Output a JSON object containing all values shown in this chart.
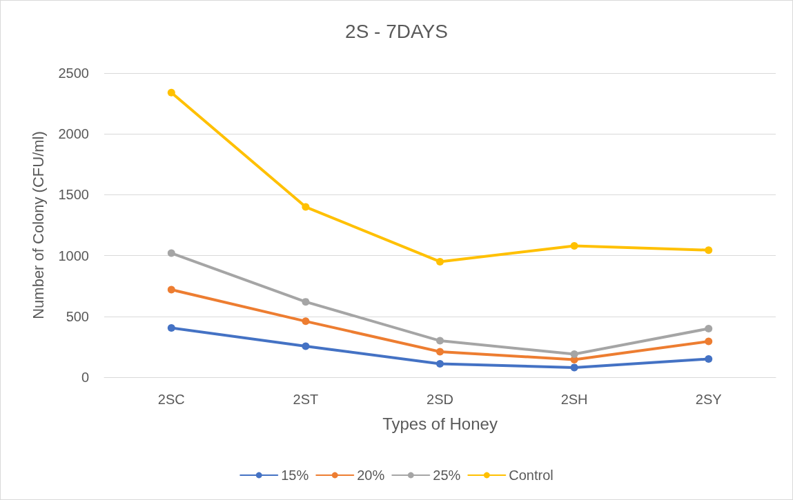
{
  "chart_data": {
    "type": "line",
    "title": "2S - 7DAYS",
    "xlabel": "Types of Honey",
    "ylabel": "Number of Colony (CFU/ml)",
    "categories": [
      "2SC",
      "2ST",
      "2SD",
      "2SH",
      "2SY"
    ],
    "series": [
      {
        "name": "15%",
        "color": "#4472c4",
        "values": [
          405,
          255,
          110,
          80,
          150
        ]
      },
      {
        "name": "20%",
        "color": "#ed7d31",
        "values": [
          720,
          460,
          210,
          145,
          295
        ]
      },
      {
        "name": "25%",
        "color": "#a5a5a5",
        "values": [
          1020,
          620,
          300,
          190,
          400
        ]
      },
      {
        "name": "Control",
        "color": "#ffc000",
        "values": [
          2340,
          1400,
          950,
          1080,
          1045
        ]
      }
    ],
    "ylim": [
      0,
      2500
    ],
    "yticks": [
      0,
      500,
      1000,
      1500,
      2000,
      2500
    ],
    "grid": "y",
    "legend": "bottom",
    "marker": "circle",
    "line_style": "solid"
  }
}
